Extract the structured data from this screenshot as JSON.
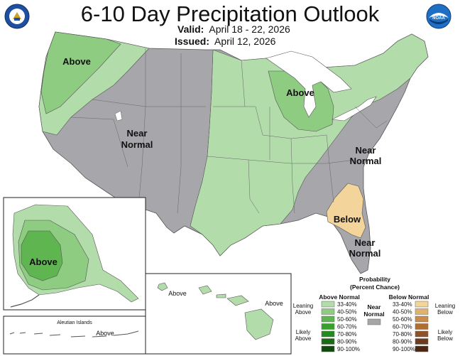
{
  "header": {
    "title": "6-10 Day Precipitation Outlook",
    "valid_label": "Valid:",
    "valid_value": "April 18 - 22, 2026",
    "issued_label": "Issued:",
    "issued_value": "April 12, 2026"
  },
  "logos": {
    "left": "doc-seal-icon",
    "right": "noaa-logo-icon"
  },
  "map_labels": {
    "west_above": "Above",
    "near_normal_1": "Near",
    "near_normal_2": "Normal",
    "midwest_above": "Above",
    "east_near_1": "Near",
    "east_near_2": "Normal",
    "se_below": "Below",
    "fl_near_1": "Near",
    "fl_near_2": "Normal",
    "alaska_above": "Above",
    "hawaii_above_1": "Above",
    "hawaii_above_2": "Above",
    "aleutian_title": "Aleutian Islands",
    "aleutian_above": "Above"
  },
  "legend": {
    "title_1": "Probability",
    "title_2": "(Percent Chance)",
    "above_header": "Above Normal",
    "below_header": "Below Normal",
    "near_header_1": "Near",
    "near_header_2": "Normal",
    "leaning_above_1": "Leaning",
    "leaning_above_2": "Above",
    "likely_above_1": "Likely",
    "likely_above_2": "Above",
    "leaning_below_1": "Leaning",
    "leaning_below_2": "Below",
    "likely_below_1": "Likely",
    "likely_below_2": "Below",
    "bins": [
      "33-40%",
      "40-50%",
      "50-60%",
      "60-70%",
      "70-80%",
      "80-90%",
      "90-100%"
    ],
    "above_colors": [
      "#b3dcab",
      "#8dcc81",
      "#5fb550",
      "#38a12c",
      "#238a1f",
      "#1b6b16",
      "#104a0d"
    ],
    "below_colors": [
      "#f3d49a",
      "#e0b36d",
      "#c98c4c",
      "#b06e33",
      "#8f5227",
      "#6e3b1d",
      "#4c2712"
    ],
    "near_color": "#a6a6a6"
  },
  "colors": {
    "near_normal": "#a7a6ab",
    "above_33_40": "#b3dcab",
    "above_40_50": "#8dcc81",
    "above_50_60": "#5fb550",
    "below_33_40": "#f3d49a"
  }
}
